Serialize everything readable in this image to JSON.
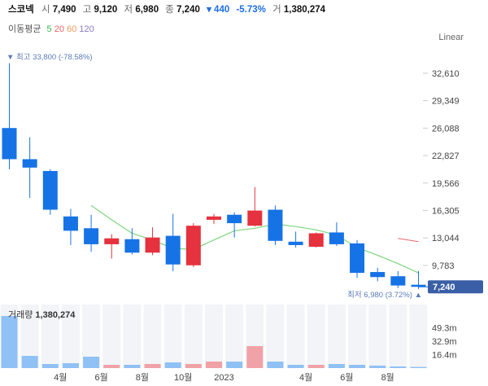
{
  "header": {
    "name": "스코넥",
    "open_label": "시",
    "open": "7,490",
    "high_label": "고",
    "high": "9,120",
    "low_label": "저",
    "low": "6,980",
    "close_label": "종",
    "close": "7,240",
    "change": "▾ 440",
    "change_pct": "-5.73%",
    "volume_label": "거",
    "volume": "1,380,274"
  },
  "ma_legend": {
    "title": "이동평균",
    "items": [
      {
        "label": "5",
        "color": "#3cb44b"
      },
      {
        "label": "20",
        "color": "#e8636b"
      },
      {
        "label": "60",
        "color": "#f19a5d"
      },
      {
        "label": "120",
        "color": "#8e7cc3"
      }
    ]
  },
  "scale_label": "Linear",
  "annotations": {
    "high": "▼ 최고 33,800 (-78.58%)",
    "low": "최저 6,980 (3.72%) ▲",
    "current_price": "7,240"
  },
  "volume_panel": {
    "label": "거래량",
    "value": "1,380,274"
  },
  "colors": {
    "up": "#e5323e",
    "down": "#1673e6",
    "ma5": "#7cd67c",
    "ma20": "#e8636b"
  },
  "chart_data": {
    "type": "candlestick",
    "price_axis": {
      "ticks": [
        32610,
        29349,
        26088,
        22827,
        19566,
        16305,
        13044,
        9783
      ],
      "ylim": [
        6200,
        35500
      ]
    },
    "volume_axis": {
      "ticks": [
        "49.3m",
        "32.9m",
        "16.4m"
      ],
      "tick_values": [
        49.3,
        32.9,
        16.4
      ],
      "ylim": [
        0,
        78
      ]
    },
    "x_labels": [
      {
        "label": "4월",
        "index": 2
      },
      {
        "label": "6월",
        "index": 4
      },
      {
        "label": "8월",
        "index": 6
      },
      {
        "label": "10월",
        "index": 8
      },
      {
        "label": "2023",
        "index": 10
      },
      {
        "label": "4월",
        "index": 14
      },
      {
        "label": "6월",
        "index": 16
      },
      {
        "label": "8월",
        "index": 18
      }
    ],
    "candles": [
      {
        "o": 26100,
        "h": 33800,
        "l": 21200,
        "c": 22400
      },
      {
        "o": 22400,
        "h": 25000,
        "l": 17800,
        "c": 21400
      },
      {
        "o": 21000,
        "h": 21200,
        "l": 15800,
        "c": 16400
      },
      {
        "o": 15600,
        "h": 16500,
        "l": 12200,
        "c": 13900
      },
      {
        "o": 14200,
        "h": 15800,
        "l": 11400,
        "c": 12300
      },
      {
        "o": 12300,
        "h": 13500,
        "l": 10600,
        "c": 13000
      },
      {
        "o": 12900,
        "h": 14200,
        "l": 11100,
        "c": 11300
      },
      {
        "o": 11300,
        "h": 14300,
        "l": 11000,
        "c": 13100
      },
      {
        "o": 13300,
        "h": 15900,
        "l": 9100,
        "c": 9900
      },
      {
        "o": 9800,
        "h": 14800,
        "l": 9600,
        "c": 14500
      },
      {
        "o": 15200,
        "h": 15900,
        "l": 14700,
        "c": 15600
      },
      {
        "o": 15800,
        "h": 16100,
        "l": 13100,
        "c": 14800
      },
      {
        "o": 14500,
        "h": 19100,
        "l": 14400,
        "c": 16300
      },
      {
        "o": 16400,
        "h": 16900,
        "l": 12200,
        "c": 12700
      },
      {
        "o": 12600,
        "h": 13800,
        "l": 11900,
        "c": 12200
      },
      {
        "o": 12000,
        "h": 13700,
        "l": 11900,
        "c": 13600
      },
      {
        "o": 13700,
        "h": 14900,
        "l": 12100,
        "c": 12300
      },
      {
        "o": 12400,
        "h": 12800,
        "l": 8300,
        "c": 8900
      },
      {
        "o": 9000,
        "h": 9500,
        "l": 7900,
        "c": 8400
      },
      {
        "o": 8500,
        "h": 9100,
        "l": 7100,
        "c": 7400
      },
      {
        "o": 7490,
        "h": 9120,
        "l": 6980,
        "c": 7240
      }
    ],
    "volume": [
      64,
      15,
      5,
      6,
      14,
      4,
      4,
      5,
      7,
      5,
      8,
      8,
      27,
      8,
      4,
      4,
      5,
      4,
      3,
      2,
      1.4
    ],
    "ma5": [
      null,
      null,
      null,
      null,
      16900,
      15200,
      13600,
      12800,
      11800,
      11700,
      12800,
      13900,
      14200,
      14700,
      14400,
      14000,
      13400,
      11900,
      11000,
      10000,
      8900
    ],
    "ma20": [
      {
        "x": 19.0,
        "y": 13000
      },
      {
        "x": 20.0,
        "y": 12600
      }
    ]
  }
}
